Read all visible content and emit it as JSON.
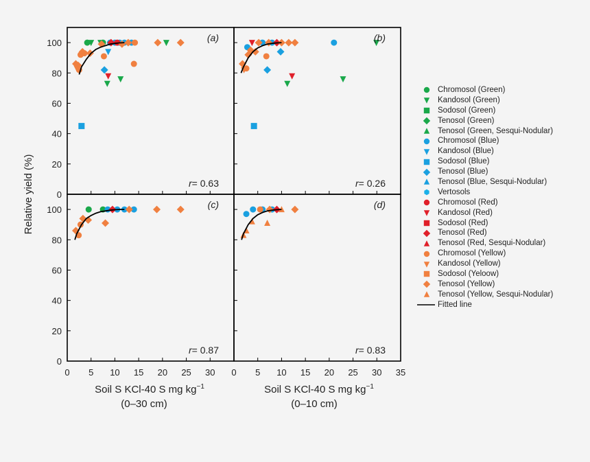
{
  "chart_data": {
    "type": "scatter",
    "ylabel": "Relative yield (%)",
    "xlabel_main": "Soil S KCl-40 S mg kg",
    "xlabel_superscript": "−1",
    "xlabel_depth_left": "(0–30 cm)",
    "xlabel_depth_right": "(0–10 cm)",
    "ylim": [
      0,
      110
    ],
    "y_ticks": [
      "0",
      "20",
      "40",
      "60",
      "80",
      "100"
    ],
    "x_ticks_left": [
      "0",
      "5",
      "10",
      "15",
      "20",
      "25",
      "30"
    ],
    "x_ticks_right": [
      "0",
      "5",
      "10",
      "15",
      "20",
      "25",
      "30",
      "35"
    ],
    "colors": {
      "Green": "#1aa84a",
      "Blue": "#1aa0e0",
      "Red": "#e0202a",
      "Yellow": "#f08040",
      "Vertosols": "#1ab0e8"
    },
    "legend": [
      {
        "label": "Chromosol (Green)",
        "marker": "circle",
        "color": "#1aa84a"
      },
      {
        "label": "Kandosol (Green)",
        "marker": "triangle-down",
        "color": "#1aa84a"
      },
      {
        "label": "Sodosol (Green)",
        "marker": "square",
        "color": "#1aa84a"
      },
      {
        "label": "Tenosol (Green)",
        "marker": "diamond",
        "color": "#1aa84a"
      },
      {
        "label": "Tenosol (Green, Sesqui-Nodular)",
        "marker": "triangle-up",
        "color": "#1aa84a"
      },
      {
        "label": "Chromosol (Blue)",
        "marker": "circle",
        "color": "#1aa0e0"
      },
      {
        "label": "Kandosol (Blue)",
        "marker": "triangle-down",
        "color": "#1aa0e0"
      },
      {
        "label": "Sodosol (Blue)",
        "marker": "square",
        "color": "#1aa0e0"
      },
      {
        "label": "Tenosol (Blue)",
        "marker": "diamond",
        "color": "#1aa0e0"
      },
      {
        "label": "Tenosol (Blue, Sesqui-Nodular)",
        "marker": "triangle-up",
        "color": "#1aa0e0"
      },
      {
        "label": "Vertosols",
        "marker": "hexagon",
        "color": "#1ab0e8"
      },
      {
        "label": "Chromosol (Red)",
        "marker": "circle",
        "color": "#e0202a"
      },
      {
        "label": "Kandosol (Red)",
        "marker": "triangle-down",
        "color": "#e0202a"
      },
      {
        "label": "Sodosol (Red)",
        "marker": "square",
        "color": "#e0202a"
      },
      {
        "label": "Tenosol (Red)",
        "marker": "diamond",
        "color": "#e0202a"
      },
      {
        "label": "Tenosol (Red, Sesqui-Nodular)",
        "marker": "triangle-up",
        "color": "#e0202a"
      },
      {
        "label": "Chromosol (Yellow)",
        "marker": "circle",
        "color": "#f08040"
      },
      {
        "label": "Kandosol (Yellow)",
        "marker": "triangle-down",
        "color": "#f08040"
      },
      {
        "label": "Sodosol (Yeloow)",
        "marker": "square",
        "color": "#f08040"
      },
      {
        "label": "Tenosol (Yellow)",
        "marker": "diamond",
        "color": "#f08040"
      },
      {
        "label": "Tenosol (Yellow, Sesqui-Nodular)",
        "marker": "triangle-up",
        "color": "#f08040"
      },
      {
        "label": "Fitted line",
        "marker": "line",
        "color": "#000000"
      }
    ],
    "panels": [
      {
        "id": "a",
        "label": "(a)",
        "r_label": "r",
        "r_value": "= 0.63",
        "xlim": [
          0,
          35
        ],
        "fitted_line": [
          [
            2.5,
            79
          ],
          [
            3,
            84
          ],
          [
            4,
            89
          ],
          [
            5,
            93
          ],
          [
            6,
            95.5
          ],
          [
            7,
            97
          ],
          [
            8,
            98
          ],
          [
            9,
            99
          ],
          [
            10,
            99.5
          ],
          [
            11,
            99.8
          ],
          [
            12,
            100
          ]
        ],
        "points": [
          {
            "x": 4.2,
            "y": 100,
            "marker": "circle",
            "color": "#1aa84a"
          },
          {
            "x": 7.5,
            "y": 100,
            "marker": "circle",
            "color": "#1aa84a"
          },
          {
            "x": 5.0,
            "y": 100,
            "marker": "triangle-down",
            "color": "#1aa84a"
          },
          {
            "x": 7.0,
            "y": 100,
            "marker": "triangle-down",
            "color": "#1aa84a"
          },
          {
            "x": 8.4,
            "y": 73,
            "marker": "triangle-down",
            "color": "#1aa84a"
          },
          {
            "x": 11.2,
            "y": 76,
            "marker": "triangle-down",
            "color": "#1aa84a"
          },
          {
            "x": 20.8,
            "y": 100,
            "marker": "triangle-down",
            "color": "#1aa84a"
          },
          {
            "x": 3.0,
            "y": 45,
            "marker": "square",
            "color": "#1aa0e0"
          },
          {
            "x": 7.8,
            "y": 82,
            "marker": "diamond",
            "color": "#1aa0e0"
          },
          {
            "x": 8.6,
            "y": 94,
            "marker": "triangle-down",
            "color": "#1aa0e0"
          },
          {
            "x": 9.0,
            "y": 100,
            "marker": "circle",
            "color": "#1aa0e0"
          },
          {
            "x": 10.0,
            "y": 100,
            "marker": "circle",
            "color": "#1aa0e0"
          },
          {
            "x": 11.0,
            "y": 100,
            "marker": "circle",
            "color": "#1aa0e0"
          },
          {
            "x": 12.0,
            "y": 100,
            "marker": "circle",
            "color": "#1aa0e0"
          },
          {
            "x": 13.5,
            "y": 100,
            "marker": "circle",
            "color": "#1aa0e0"
          },
          {
            "x": 8.6,
            "y": 78,
            "marker": "triangle-down",
            "color": "#e0202a"
          },
          {
            "x": 9.2,
            "y": 100,
            "marker": "diamond",
            "color": "#e0202a"
          },
          {
            "x": 10.5,
            "y": 100,
            "marker": "circle",
            "color": "#e0202a"
          },
          {
            "x": 1.8,
            "y": 86,
            "marker": "diamond",
            "color": "#f08040"
          },
          {
            "x": 2.3,
            "y": 85,
            "marker": "diamond",
            "color": "#f08040"
          },
          {
            "x": 2.0,
            "y": 83,
            "marker": "triangle-down",
            "color": "#f08040"
          },
          {
            "x": 2.5,
            "y": 82,
            "marker": "circle",
            "color": "#f08040"
          },
          {
            "x": 2.8,
            "y": 92,
            "marker": "circle",
            "color": "#f08040"
          },
          {
            "x": 3.2,
            "y": 94,
            "marker": "diamond",
            "color": "#f08040"
          },
          {
            "x": 3.6,
            "y": 93,
            "marker": "circle",
            "color": "#f08040"
          },
          {
            "x": 4.8,
            "y": 93,
            "marker": "diamond",
            "color": "#f08040"
          },
          {
            "x": 7.7,
            "y": 91,
            "marker": "circle",
            "color": "#f08040"
          },
          {
            "x": 7.2,
            "y": 99,
            "marker": "diamond",
            "color": "#f08040"
          },
          {
            "x": 11.5,
            "y": 99,
            "marker": "diamond",
            "color": "#f08040"
          },
          {
            "x": 12.8,
            "y": 100,
            "marker": "diamond",
            "color": "#f08040"
          },
          {
            "x": 14.0,
            "y": 86,
            "marker": "circle",
            "color": "#f08040"
          },
          {
            "x": 14.2,
            "y": 100,
            "marker": "circle",
            "color": "#f08040"
          },
          {
            "x": 19.0,
            "y": 100,
            "marker": "diamond",
            "color": "#f08040"
          },
          {
            "x": 23.8,
            "y": 100,
            "marker": "diamond",
            "color": "#f08040"
          }
        ]
      },
      {
        "id": "b",
        "label": "(b)",
        "r_label": "r",
        "r_value": "= 0.26",
        "xlim": [
          0,
          35
        ],
        "fitted_line": [
          [
            1.5,
            80
          ],
          [
            2,
            84
          ],
          [
            3,
            90
          ],
          [
            4,
            94
          ],
          [
            5,
            96.5
          ],
          [
            6,
            98
          ],
          [
            7,
            99
          ],
          [
            8,
            99.5
          ],
          [
            9,
            99.8
          ],
          [
            10,
            100
          ]
        ],
        "points": [
          {
            "x": 4.2,
            "y": 45,
            "marker": "square",
            "color": "#1aa0e0"
          },
          {
            "x": 2.8,
            "y": 97,
            "marker": "circle",
            "color": "#1aa0e0"
          },
          {
            "x": 7.0,
            "y": 82,
            "marker": "diamond",
            "color": "#1aa0e0"
          },
          {
            "x": 9.8,
            "y": 94,
            "marker": "diamond",
            "color": "#1aa0e0"
          },
          {
            "x": 6.0,
            "y": 100,
            "marker": "circle",
            "color": "#1aa0e0"
          },
          {
            "x": 8.0,
            "y": 100,
            "marker": "circle",
            "color": "#1aa0e0"
          },
          {
            "x": 21.0,
            "y": 100,
            "marker": "circle",
            "color": "#1aa0e0"
          },
          {
            "x": 11.2,
            "y": 73,
            "marker": "triangle-down",
            "color": "#1aa84a"
          },
          {
            "x": 22.9,
            "y": 76,
            "marker": "triangle-down",
            "color": "#1aa84a"
          },
          {
            "x": 29.9,
            "y": 100,
            "marker": "triangle-down",
            "color": "#1aa84a"
          },
          {
            "x": 3.8,
            "y": 100,
            "marker": "triangle-down",
            "color": "#e0202a"
          },
          {
            "x": 12.2,
            "y": 78,
            "marker": "triangle-down",
            "color": "#e0202a"
          },
          {
            "x": 9.0,
            "y": 100,
            "marker": "diamond",
            "color": "#e0202a"
          },
          {
            "x": 1.8,
            "y": 86,
            "marker": "diamond",
            "color": "#f08040"
          },
          {
            "x": 2.1,
            "y": 82,
            "marker": "triangle-down",
            "color": "#f08040"
          },
          {
            "x": 2.6,
            "y": 83,
            "marker": "circle",
            "color": "#f08040"
          },
          {
            "x": 3.0,
            "y": 92,
            "marker": "diamond",
            "color": "#f08040"
          },
          {
            "x": 3.5,
            "y": 95,
            "marker": "diamond",
            "color": "#f08040"
          },
          {
            "x": 4.5,
            "y": 94,
            "marker": "diamond",
            "color": "#f08040"
          },
          {
            "x": 5.2,
            "y": 100,
            "marker": "diamond",
            "color": "#f08040"
          },
          {
            "x": 6.8,
            "y": 91,
            "marker": "circle",
            "color": "#f08040"
          },
          {
            "x": 7.3,
            "y": 100,
            "marker": "diamond",
            "color": "#f08040"
          },
          {
            "x": 10.0,
            "y": 100,
            "marker": "diamond",
            "color": "#f08040"
          },
          {
            "x": 11.5,
            "y": 100,
            "marker": "diamond",
            "color": "#f08040"
          },
          {
            "x": 12.8,
            "y": 100,
            "marker": "diamond",
            "color": "#f08040"
          }
        ]
      },
      {
        "id": "c",
        "label": "(c)",
        "r_label": "r",
        "r_value": "= 0.87",
        "xlim": [
          0,
          35
        ],
        "fitted_line": [
          [
            1.6,
            80
          ],
          [
            2,
            84
          ],
          [
            3,
            90
          ],
          [
            4,
            94
          ],
          [
            5,
            96
          ],
          [
            6,
            97.5
          ],
          [
            7,
            98.5
          ],
          [
            8,
            99
          ],
          [
            9,
            99.5
          ],
          [
            10,
            99.8
          ],
          [
            11,
            100
          ],
          [
            12,
            100
          ]
        ],
        "points": [
          {
            "x": 4.5,
            "y": 100,
            "marker": "circle",
            "color": "#1aa84a"
          },
          {
            "x": 7.5,
            "y": 100,
            "marker": "circle",
            "color": "#1aa84a"
          },
          {
            "x": 8.5,
            "y": 100,
            "marker": "circle",
            "color": "#1aa0e0"
          },
          {
            "x": 10.5,
            "y": 100,
            "marker": "circle",
            "color": "#1aa0e0"
          },
          {
            "x": 12.0,
            "y": 100,
            "marker": "circle",
            "color": "#1aa0e0"
          },
          {
            "x": 14.0,
            "y": 100,
            "marker": "circle",
            "color": "#1aa0e0"
          },
          {
            "x": 9.5,
            "y": 100,
            "marker": "diamond",
            "color": "#e0202a"
          },
          {
            "x": 1.8,
            "y": 86,
            "marker": "diamond",
            "color": "#f08040"
          },
          {
            "x": 2.4,
            "y": 83,
            "marker": "circle",
            "color": "#f08040"
          },
          {
            "x": 2.8,
            "y": 90,
            "marker": "circle",
            "color": "#f08040"
          },
          {
            "x": 3.3,
            "y": 94,
            "marker": "diamond",
            "color": "#f08040"
          },
          {
            "x": 4.4,
            "y": 93,
            "marker": "diamond",
            "color": "#f08040"
          },
          {
            "x": 8.0,
            "y": 91,
            "marker": "diamond",
            "color": "#f08040"
          },
          {
            "x": 13.0,
            "y": 100,
            "marker": "diamond",
            "color": "#f08040"
          },
          {
            "x": 18.8,
            "y": 100,
            "marker": "diamond",
            "color": "#f08040"
          },
          {
            "x": 23.8,
            "y": 100,
            "marker": "diamond",
            "color": "#f08040"
          }
        ]
      },
      {
        "id": "d",
        "label": "(d)",
        "r_label": "r",
        "r_value": "= 0.83",
        "xlim": [
          0,
          35
        ],
        "fitted_line": [
          [
            1.6,
            80
          ],
          [
            2,
            84
          ],
          [
            3,
            90
          ],
          [
            4,
            94
          ],
          [
            5,
            96.5
          ],
          [
            6,
            98
          ],
          [
            7,
            99
          ],
          [
            8,
            99.5
          ],
          [
            9,
            99.8
          ],
          [
            10,
            100
          ]
        ],
        "points": [
          {
            "x": 2.6,
            "y": 97,
            "marker": "circle",
            "color": "#1aa0e0"
          },
          {
            "x": 4.0,
            "y": 100,
            "marker": "circle",
            "color": "#1aa0e0"
          },
          {
            "x": 6.0,
            "y": 100,
            "marker": "circle",
            "color": "#1aa0e0"
          },
          {
            "x": 8.0,
            "y": 100,
            "marker": "circle",
            "color": "#1aa0e0"
          },
          {
            "x": 9.0,
            "y": 100,
            "marker": "diamond",
            "color": "#e0202a"
          },
          {
            "x": 2.0,
            "y": 83,
            "marker": "triangle-up",
            "color": "#f08040"
          },
          {
            "x": 2.6,
            "y": 86,
            "marker": "triangle-up",
            "color": "#f08040"
          },
          {
            "x": 3.8,
            "y": 92,
            "marker": "triangle-up",
            "color": "#f08040"
          },
          {
            "x": 5.5,
            "y": 100,
            "marker": "circle",
            "color": "#f08040"
          },
          {
            "x": 7.0,
            "y": 91,
            "marker": "triangle-up",
            "color": "#f08040"
          },
          {
            "x": 7.5,
            "y": 100,
            "marker": "diamond",
            "color": "#f08040"
          },
          {
            "x": 10.0,
            "y": 100,
            "marker": "triangle-up",
            "color": "#f08040"
          },
          {
            "x": 12.8,
            "y": 100,
            "marker": "diamond",
            "color": "#f08040"
          }
        ]
      }
    ]
  }
}
